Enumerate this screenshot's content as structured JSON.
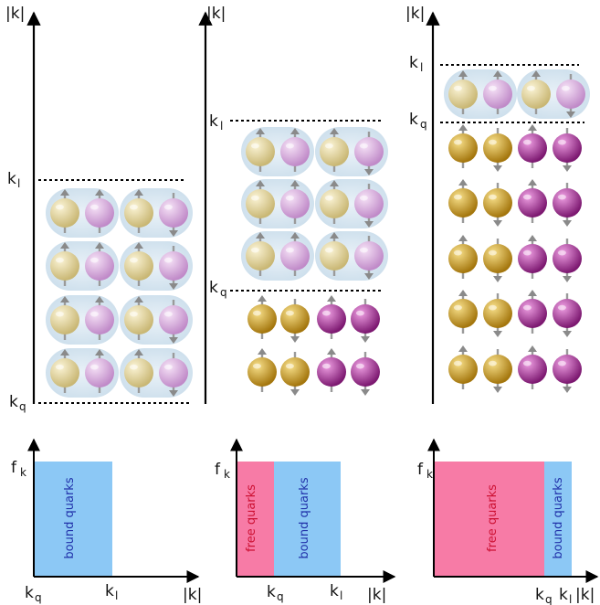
{
  "labels": {
    "k_main": "k",
    "sub_l": "l",
    "sub_q": "q",
    "abs_k": "|k|",
    "f_main": "f",
    "sub_k": "k"
  },
  "panels": [
    {
      "id": "left",
      "bound_pair_rows": 4,
      "free_quark_rows": 0,
      "bars": [
        {
          "label": "bound quarks",
          "color": "#8cc8f5",
          "text_color": "#2233aa"
        }
      ]
    },
    {
      "id": "middle",
      "bound_pair_rows": 3,
      "free_quark_rows": 2,
      "bars": [
        {
          "label": "free quarks",
          "color": "#f77ba6",
          "text_color": "#cc1133"
        },
        {
          "label": "bound quarks",
          "color": "#8cc8f5",
          "text_color": "#2233aa"
        }
      ]
    },
    {
      "id": "right",
      "bound_pair_rows": 1,
      "free_quark_rows": 5,
      "bars": [
        {
          "label": "free quarks",
          "color": "#f77ba6",
          "text_color": "#cc1133"
        },
        {
          "label": "bound quarks",
          "color": "#8cc8f5",
          "text_color": "#2233aa"
        }
      ]
    }
  ],
  "colors": {
    "bound_yellow": "#e3d59a",
    "bound_pink": "#dcb1e2",
    "free_gold": "#d4a52a",
    "free_purple": "#b0409e",
    "pair_shell": "#d6e6f2",
    "spin_arrow": "#9a9a9a"
  }
}
